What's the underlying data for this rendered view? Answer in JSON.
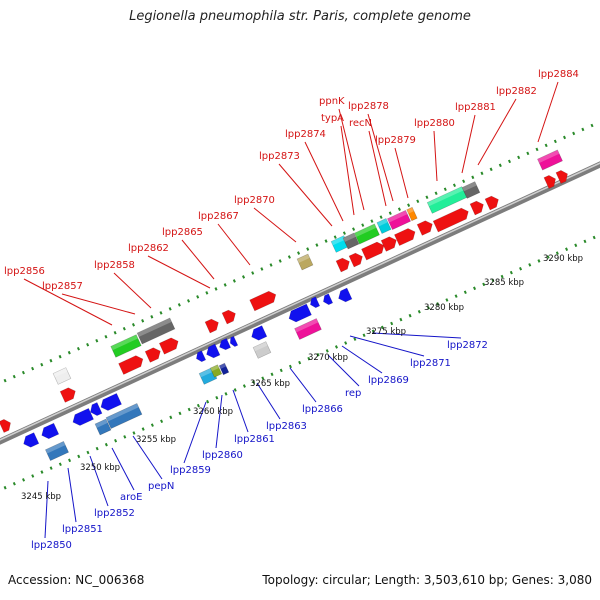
{
  "title": "Legionella pneumophila str. Paris, complete genome",
  "footer": {
    "accession": "Accession: NC_006368",
    "summary": "Topology: circular; Length: 3,503,610 bp; Genes: 3,080"
  },
  "kbp_labels": [
    "3245 kbp",
    "3250 kbp",
    "3255 kbp",
    "3260 kbp",
    "3265 kbp",
    "3270 kbp",
    "3275 kbp",
    "3280 kbp",
    "3285 kbp",
    "3290 kbp"
  ],
  "forward_gene_labels": [
    "lpp2856",
    "lpp2857",
    "lpp2858",
    "lpp2862",
    "lpp2865",
    "lpp2867",
    "lpp2870",
    "lpp2873",
    "lpp2874",
    "typA",
    "ppnK",
    "recN",
    "lpp2878",
    "lpp2879",
    "lpp2880",
    "lpp2881",
    "lpp2882",
    "lpp2884"
  ],
  "reverse_gene_labels": [
    "lpp2850",
    "lpp2851",
    "lpp2852",
    "aroE",
    "pepN",
    "lpp2859",
    "lpp2860",
    "lpp2861",
    "lpp2863",
    "lpp2866",
    "rep",
    "lpp2869",
    "lpp2871",
    "lpp2872"
  ],
  "colors": {
    "forward": "#ee1111",
    "reverse": "#1111ee",
    "forward_label": "#d41414",
    "reverse_label": "#1414c8",
    "backbone": "#8a8a8a",
    "tick": "#2a8a2a"
  }
}
